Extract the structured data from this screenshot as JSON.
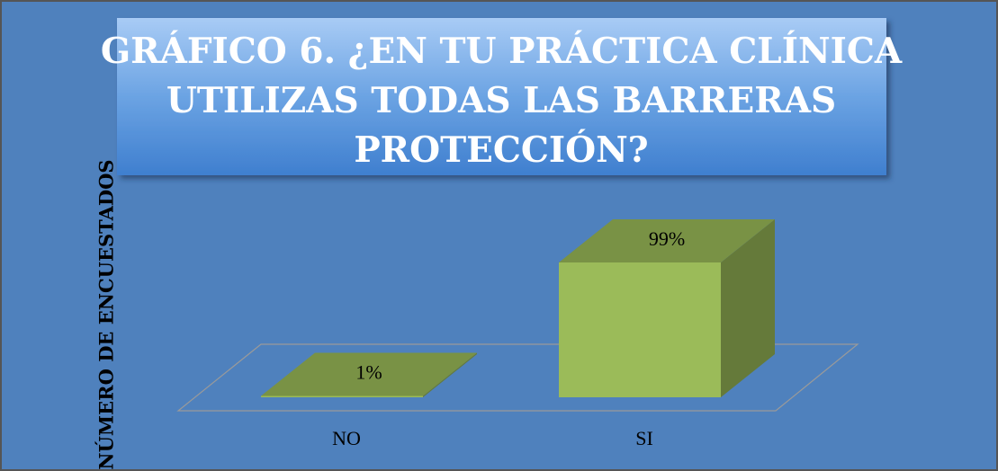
{
  "chart_data": {
    "type": "bar3d",
    "title": "GRÁFICO 6. ¿EN TU PRÁCTICA CLÍNICA UTILIZAS TODAS LAS BARRERAS PROTECCIÓN?",
    "y_label": "NÚMERO DE ENCUESTADOS",
    "categories": [
      "NO",
      "SI"
    ],
    "values": [
      1,
      99
    ],
    "value_labels": [
      "1%",
      "99%"
    ],
    "color": "#9bbb59"
  }
}
